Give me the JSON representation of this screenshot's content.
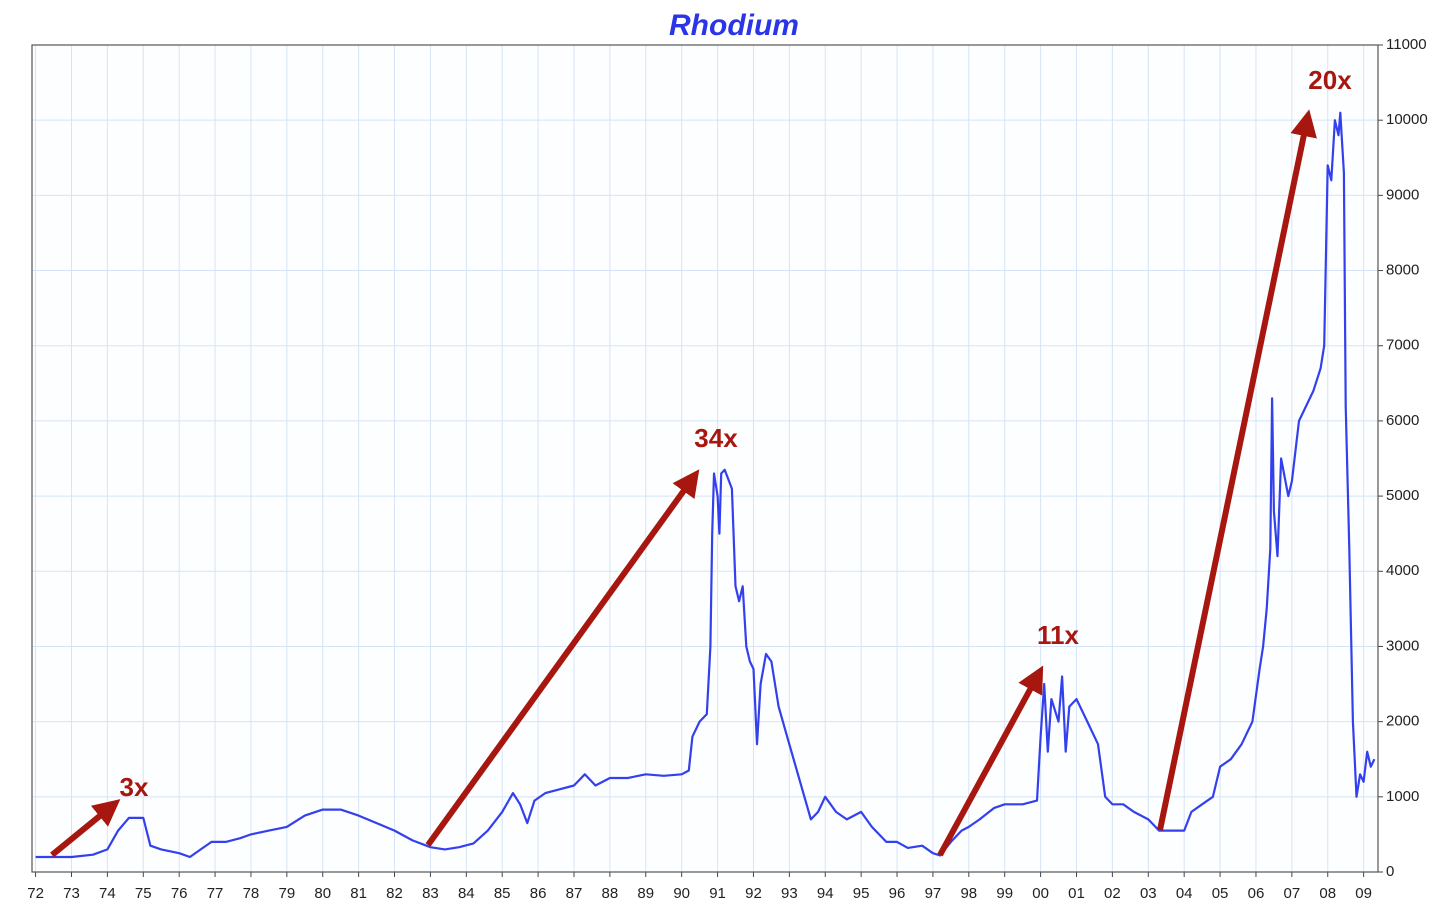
{
  "chart_data": {
    "type": "line",
    "title": "Rhodium",
    "color": "#3340ee",
    "grid": true,
    "x": [
      1972.0,
      1973.0,
      1973.6,
      1974.0,
      1974.3,
      1974.6,
      1975.0,
      1975.2,
      1975.5,
      1976.0,
      1976.3,
      1976.6,
      1976.9,
      1977.3,
      1977.7,
      1978.0,
      1978.5,
      1979.0,
      1979.5,
      1980.0,
      1980.5,
      1981.0,
      1981.5,
      1982.0,
      1982.5,
      1983.0,
      1983.4,
      1983.8,
      1984.2,
      1984.6,
      1985.0,
      1985.3,
      1985.5,
      1985.7,
      1985.9,
      1986.2,
      1986.6,
      1987.0,
      1987.3,
      1987.6,
      1988.0,
      1988.5,
      1989.0,
      1989.5,
      1990.0,
      1990.2,
      1990.3,
      1990.5,
      1990.7,
      1990.8,
      1990.85,
      1990.9,
      1991.0,
      1991.05,
      1991.1,
      1991.2,
      1991.4,
      1991.5,
      1991.6,
      1991.7,
      1991.8,
      1991.9,
      1992.0,
      1992.1,
      1992.2,
      1992.35,
      1992.5,
      1992.7,
      1993.0,
      1993.3,
      1993.6,
      1993.8,
      1994.0,
      1994.3,
      1994.6,
      1995.0,
      1995.3,
      1995.7,
      1996.0,
      1996.3,
      1996.7,
      1997.0,
      1997.2,
      1997.5,
      1997.8,
      1998.0,
      1998.3,
      1998.7,
      1999.0,
      1999.5,
      1999.9,
      2000.0,
      2000.1,
      2000.2,
      2000.3,
      2000.5,
      2000.6,
      2000.7,
      2000.8,
      2001.0,
      2001.3,
      2001.6,
      2001.8,
      2002.0,
      2002.3,
      2002.6,
      2003.0,
      2003.3,
      2003.6,
      2004.0,
      2004.2,
      2004.5,
      2004.8,
      2005.0,
      2005.3,
      2005.6,
      2005.9,
      2006.1,
      2006.2,
      2006.3,
      2006.4,
      2006.45,
      2006.5,
      2006.6,
      2006.7,
      2006.9,
      2007.0,
      2007.2,
      2007.4,
      2007.6,
      2007.8,
      2007.9,
      2008.0,
      2008.1,
      2008.2,
      2008.3,
      2008.35,
      2008.45,
      2008.5,
      2008.6,
      2008.7,
      2008.8,
      2008.9,
      2009.0,
      2009.1,
      2009.2,
      2009.3
    ],
    "values": [
      200,
      200,
      230,
      300,
      550,
      720,
      720,
      350,
      300,
      250,
      200,
      300,
      400,
      400,
      450,
      500,
      550,
      600,
      750,
      830,
      830,
      750,
      650,
      550,
      420,
      330,
      300,
      330,
      380,
      550,
      800,
      1050,
      900,
      650,
      950,
      1050,
      1100,
      1150,
      1300,
      1150,
      1250,
      1250,
      1300,
      1280,
      1300,
      1350,
      1800,
      2000,
      2100,
      3000,
      4500,
      5300,
      5000,
      4500,
      5300,
      5350,
      5100,
      3800,
      3600,
      3800,
      3000,
      2800,
      2700,
      1700,
      2500,
      2900,
      2800,
      2200,
      1700,
      1200,
      700,
      800,
      1000,
      800,
      700,
      800,
      600,
      400,
      400,
      320,
      350,
      250,
      220,
      400,
      550,
      600,
      700,
      850,
      900,
      900,
      950,
      1800,
      2500,
      1600,
      2300,
      2000,
      2600,
      1600,
      2200,
      2300,
      2000,
      1700,
      1000,
      900,
      900,
      800,
      700,
      550,
      550,
      550,
      800,
      900,
      1000,
      1400,
      1500,
      1700,
      2000,
      2700,
      3000,
      3500,
      4300,
      6300,
      4800,
      4200,
      5500,
      5000,
      5200,
      6000,
      6200,
      6400,
      6700,
      7000,
      9400,
      9200,
      10000,
      9800,
      10100,
      9300,
      6200,
      4300,
      2000,
      1000,
      1300,
      1200,
      1600,
      1400,
      1500
    ],
    "xlim": [
      1971.9,
      2009.4
    ],
    "xticks": [
      {
        "value": 1972,
        "label": "72"
      },
      {
        "value": 1973,
        "label": "73"
      },
      {
        "value": 1974,
        "label": "74"
      },
      {
        "value": 1975,
        "label": "75"
      },
      {
        "value": 1976,
        "label": "76"
      },
      {
        "value": 1977,
        "label": "77"
      },
      {
        "value": 1978,
        "label": "78"
      },
      {
        "value": 1979,
        "label": "79"
      },
      {
        "value": 1980,
        "label": "80"
      },
      {
        "value": 1981,
        "label": "81"
      },
      {
        "value": 1982,
        "label": "82"
      },
      {
        "value": 1983,
        "label": "83"
      },
      {
        "value": 1984,
        "label": "84"
      },
      {
        "value": 1985,
        "label": "85"
      },
      {
        "value": 1986,
        "label": "86"
      },
      {
        "value": 1987,
        "label": "87"
      },
      {
        "value": 1988,
        "label": "88"
      },
      {
        "value": 1989,
        "label": "89"
      },
      {
        "value": 1990,
        "label": "90"
      },
      {
        "value": 1991,
        "label": "91"
      },
      {
        "value": 1992,
        "label": "92"
      },
      {
        "value": 1993,
        "label": "93"
      },
      {
        "value": 1994,
        "label": "94"
      },
      {
        "value": 1995,
        "label": "95"
      },
      {
        "value": 1996,
        "label": "96"
      },
      {
        "value": 1997,
        "label": "97"
      },
      {
        "value": 1998,
        "label": "98"
      },
      {
        "value": 1999,
        "label": "99"
      },
      {
        "value": 2000,
        "label": "00"
      },
      {
        "value": 2001,
        "label": "01"
      },
      {
        "value": 2002,
        "label": "02"
      },
      {
        "value": 2003,
        "label": "03"
      },
      {
        "value": 2004,
        "label": "04"
      },
      {
        "value": 2005,
        "label": "05"
      },
      {
        "value": 2006,
        "label": "06"
      },
      {
        "value": 2007,
        "label": "07"
      },
      {
        "value": 2008,
        "label": "08"
      },
      {
        "value": 2009,
        "label": "09"
      }
    ],
    "ylim": [
      0,
      11000
    ],
    "yticks": [
      0,
      1000,
      2000,
      3000,
      4000,
      5000,
      6000,
      7000,
      8000,
      9000,
      10000,
      11000
    ],
    "annotations": [
      "3x",
      "34x",
      "11x",
      "20x"
    ]
  }
}
